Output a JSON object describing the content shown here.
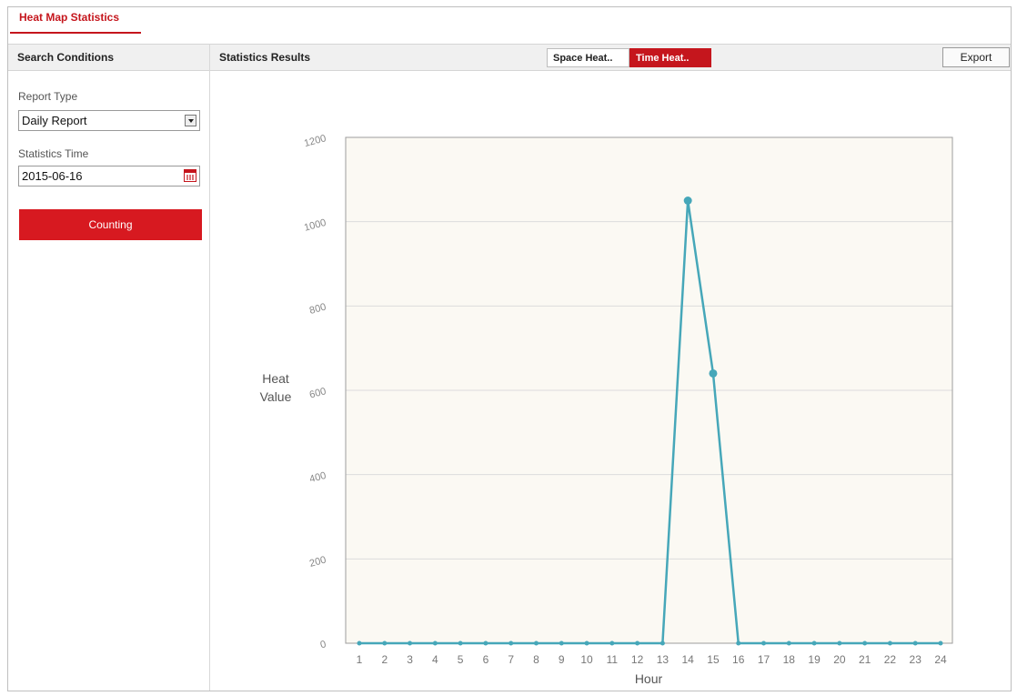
{
  "tab": {
    "label": "Heat Map Statistics"
  },
  "left_panel": {
    "header": "Search Conditions",
    "report_type_label": "Report Type",
    "report_type_value": "Daily Report",
    "statistics_time_label": "Statistics Time",
    "statistics_time_value": "2015-06-16",
    "counting_button": "Counting"
  },
  "results": {
    "header": "Statistics Results",
    "toggle_space": "Space Heat..",
    "toggle_time": "Time Heat..",
    "export_button": "Export"
  },
  "colors": {
    "accent": "#c5161d",
    "line": "#46a7b9",
    "plot_bg": "#fbf9f3"
  },
  "chart_data": {
    "type": "line",
    "title": "",
    "xlabel": "Hour",
    "ylabel": "Heat Value",
    "x": [
      1,
      2,
      3,
      4,
      5,
      6,
      7,
      8,
      9,
      10,
      11,
      12,
      13,
      14,
      15,
      16,
      17,
      18,
      19,
      20,
      21,
      22,
      23,
      24
    ],
    "series": [
      {
        "values": [
          0,
          0,
          0,
          0,
          0,
          0,
          0,
          0,
          0,
          0,
          0,
          0,
          0,
          1050,
          640,
          0,
          0,
          0,
          0,
          0,
          0,
          0,
          0,
          0
        ]
      }
    ],
    "ylim": [
      0,
      1200
    ],
    "yticks": [
      0,
      200,
      400,
      600,
      800,
      1000,
      1200
    ],
    "grid": true
  }
}
